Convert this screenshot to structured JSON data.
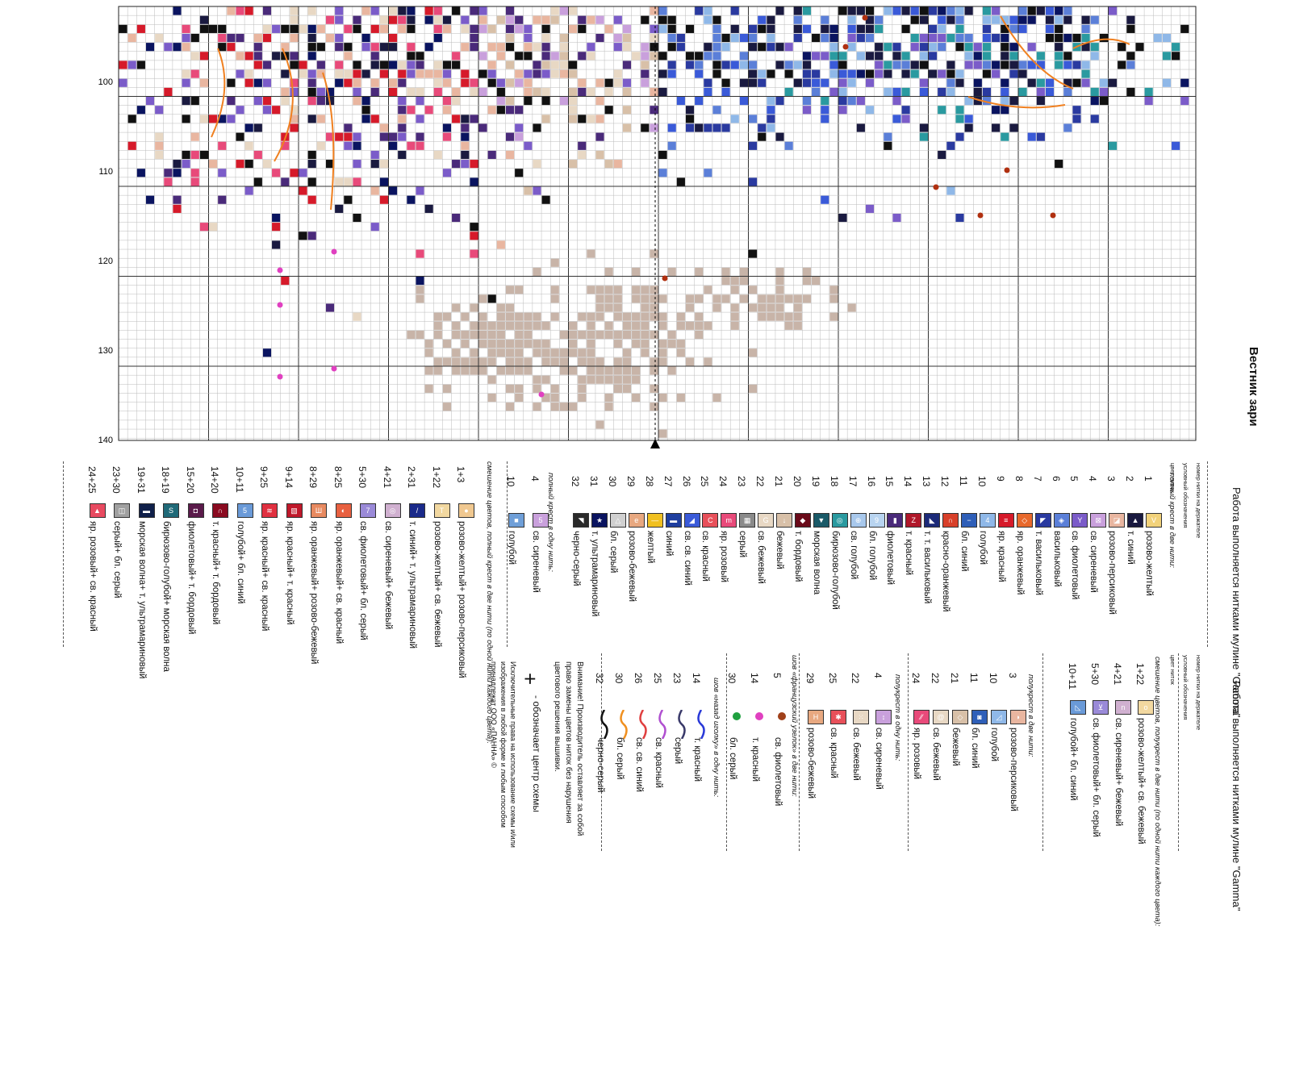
{
  "chart": {
    "row_labels": [
      "100",
      "110",
      "120",
      "130",
      "140"
    ],
    "magazine": "Вестник зари"
  },
  "right_header": {
    "title": "Работа выполняется нитками мулине \"Gamma\"",
    "col_headers": [
      "номер нитки на держателе",
      "условный обозначения",
      "цвет ниток"
    ]
  },
  "sections": {
    "full_cross_two": "полный крест в две нити:",
    "full_cross_one": "полный крест в одну нить:",
    "blend_full": "смешение цветов, полный крест в две нити (по одной нити каждого цвета):",
    "blend_half": "смешение цветов, полукрест в две нити (по одной нити каждого цвета):",
    "half_two": "полукрест в две нити:",
    "half_one": "полукрест в одну нить:",
    "french_knot": "шов «французский узелок» в две нити:",
    "backstitch": "шов «назад иголку» в одну нить:"
  },
  "legend_full_two": [
    {
      "num": "1",
      "name": "розово-желтый",
      "color": "#f2d27a",
      "mark": "V"
    },
    {
      "num": "2",
      "name": "т. синий",
      "color": "#1a1a40",
      "mark": "▲"
    },
    {
      "num": "3",
      "name": "розово-персиковый",
      "color": "#e9b6a0",
      "mark": "◪"
    },
    {
      "num": "4",
      "name": "св. сиреневый",
      "color": "#c9a0dc",
      "mark": "⊠"
    },
    {
      "num": "5",
      "name": "св. фиолетовый",
      "color": "#7b5cc9",
      "mark": "Y"
    },
    {
      "num": "6",
      "name": "васильковый",
      "color": "#5b7fd8",
      "mark": "◈"
    },
    {
      "num": "7",
      "name": "т. васильковый",
      "color": "#2a3aa0",
      "mark": "◤"
    },
    {
      "num": "8",
      "name": "яр. оранжевый",
      "color": "#e8692c",
      "mark": "◇"
    },
    {
      "num": "9",
      "name": "яр. красный",
      "color": "#d61a2a",
      "mark": "≡"
    },
    {
      "num": "10",
      "name": "голубой",
      "color": "#8fb8e8",
      "mark": "4"
    },
    {
      "num": "11",
      "name": "бл. синий",
      "color": "#2f5fb8",
      "mark": "−"
    },
    {
      "num": "12",
      "name": "красно-оранжевый",
      "color": "#d8402a",
      "mark": "∩"
    },
    {
      "num": "13",
      "name": "т. т. васильковый",
      "color": "#1c2a78",
      "mark": "◣"
    },
    {
      "num": "14",
      "name": "т. красный",
      "color": "#b0182a",
      "mark": "Z"
    },
    {
      "num": "15",
      "name": "фиолетовый",
      "color": "#4a2a7a",
      "mark": "▮"
    },
    {
      "num": "16",
      "name": "бл. голубой",
      "color": "#b8d4f0",
      "mark": "9"
    },
    {
      "num": "17",
      "name": "св. голубой",
      "color": "#a8c8ec",
      "mark": "⊕"
    },
    {
      "num": "18",
      "name": "бирюзово-голубой",
      "color": "#2a9aa0",
      "mark": "◎"
    },
    {
      "num": "19",
      "name": "морская волна",
      "color": "#1a5a68",
      "mark": "▼"
    },
    {
      "num": "20",
      "name": "т. бордовый",
      "color": "#6a0a1a",
      "mark": "◆"
    },
    {
      "num": "21",
      "name": "бежевый",
      "color": "#d8c0a8",
      "mark": "↓"
    },
    {
      "num": "22",
      "name": "св. бежевый",
      "color": "#e8d8c4",
      "mark": "G"
    },
    {
      "num": "23",
      "name": "серый",
      "color": "#8a8a8a",
      "mark": "▦"
    },
    {
      "num": "24",
      "name": "яр. розовый",
      "color": "#e84a7a",
      "mark": "m"
    },
    {
      "num": "25",
      "name": "св. красный",
      "color": "#e8505a",
      "mark": "C"
    },
    {
      "num": "26",
      "name": "св. св. синий",
      "color": "#3a5ad8",
      "mark": "◢"
    },
    {
      "num": "27",
      "name": "синий",
      "color": "#1f3f9f",
      "mark": "▬"
    },
    {
      "num": "28",
      "name": "желтый",
      "color": "#f0c020",
      "mark": "—"
    },
    {
      "num": "29",
      "name": "розово-бежевый",
      "color": "#e8a880",
      "mark": "e"
    },
    {
      "num": "30",
      "name": "бл. серый",
      "color": "#d0d0d0",
      "mark": "△"
    },
    {
      "num": "31",
      "name": "т. ультрамариновый",
      "color": "#0a1460",
      "mark": "★"
    },
    {
      "num": "32",
      "name": "черно-серый",
      "color": "#2a2a2a",
      "mark": "◥"
    }
  ],
  "legend_full_one": [
    {
      "num": "4",
      "name": "св. сиреневый",
      "color": "#c9a0dc",
      "mark": "5"
    },
    {
      "num": "10",
      "name": "голубой",
      "color": "#6f9fd8",
      "mark": "■"
    }
  ],
  "legend_blend_full": [
    {
      "num": "1+3",
      "name": "розово-желтый+ розово-персиковый",
      "color": "#f0c890",
      "mark": "●"
    },
    {
      "num": "1+22",
      "name": "розово-желтый+ св. бежевый",
      "color": "#f2d8a0",
      "mark": "T"
    },
    {
      "num": "2+31",
      "name": "т. синий+ т. ультрамариновый",
      "color": "#1a2a8a",
      "mark": "/"
    },
    {
      "num": "4+21",
      "name": "св. сиреневый+ бежевый",
      "color": "#d0b0d0",
      "mark": "◎"
    },
    {
      "num": "5+30",
      "name": "св. фиолетовый+ бл. серый",
      "color": "#9a8ad8",
      "mark": "7"
    },
    {
      "num": "8+25",
      "name": "яр. оранжевый+ св. красный",
      "color": "#e86040",
      "mark": "◐"
    },
    {
      "num": "8+29",
      "name": "яр. оранжевый+ розово-бежевый",
      "color": "#e88a60",
      "mark": "Ш"
    },
    {
      "num": "9+14",
      "name": "яр. красный+ т. красный",
      "color": "#c0182a",
      "mark": "▧"
    },
    {
      "num": "9+25",
      "name": "яр. красный+ св. красный",
      "color": "#e03040",
      "mark": "≋"
    },
    {
      "num": "10+11",
      "name": "голубой+ бл. синий",
      "color": "#6a9ad8",
      "mark": "5"
    },
    {
      "num": "14+20",
      "name": "т. красный+ т. бордовый",
      "color": "#8a0a20",
      "mark": "∩"
    },
    {
      "num": "15+20",
      "name": "фиолетовый+ т. бордовый",
      "color": "#5a1a4a",
      "mark": "◘"
    },
    {
      "num": "18+19",
      "name": "бирюзово-голубой+ морская волна",
      "color": "#206a78",
      "mark": "S"
    },
    {
      "num": "19+31",
      "name": "морская волна+ т. ультрамариновый",
      "color": "#10204a",
      "mark": "▬"
    },
    {
      "num": "23+30",
      "name": "серый+ бл. серый",
      "color": "#a0a0a0",
      "mark": "◫"
    },
    {
      "num": "24+25",
      "name": "яр. розовый+ св. красный",
      "color": "#e84a60",
      "mark": "▲"
    }
  ],
  "legend_blend_half": [
    {
      "num": "1+22",
      "name": "розово-желтый+ св. бежевый",
      "color": "#f2d8a0",
      "mark": "o"
    },
    {
      "num": "4+21",
      "name": "св. сиреневый+ бежевый",
      "color": "#d0b0d0",
      "mark": "n"
    },
    {
      "num": "5+30",
      "name": "св. фиолетовый+ бл. серый",
      "color": "#9a8ad8",
      "mark": "⊻"
    },
    {
      "num": "10+11",
      "name": "голубой+ бл. синий",
      "color": "#6a9ad8",
      "mark": "◺"
    }
  ],
  "legend_half_two": [
    {
      "num": "3",
      "name": "розово-персиковый",
      "color": "#e9b6a0",
      "mark": "◗"
    },
    {
      "num": "10",
      "name": "голубой",
      "color": "#8fb8e8",
      "mark": "◿"
    },
    {
      "num": "11",
      "name": "бл. синий",
      "color": "#2f5fb8",
      "mark": "◙"
    },
    {
      "num": "21",
      "name": "бежевый",
      "color": "#d8c0a8",
      "mark": "◇"
    },
    {
      "num": "22",
      "name": "св. бежевый",
      "color": "#e8d8c4",
      "mark": "@"
    },
    {
      "num": "24",
      "name": "яр. розовый",
      "color": "#e84a7a",
      "mark": "⁄⁄"
    }
  ],
  "legend_half_one": [
    {
      "num": "4",
      "name": "св. сиреневый",
      "color": "#c9a0dc",
      "mark": "↕"
    },
    {
      "num": "22",
      "name": "св. бежевый",
      "color": "#e8d8c4",
      "mark": "⁙"
    },
    {
      "num": "25",
      "name": "св. красный",
      "color": "#e8505a",
      "mark": "✱"
    },
    {
      "num": "29",
      "name": "розово-бежевый",
      "color": "#e8a880",
      "mark": "H"
    }
  ],
  "legend_french_knot": [
    {
      "num": "5",
      "name": "св. фиолетовый",
      "color": "#a0401a"
    },
    {
      "num": "14",
      "name": "т. красный",
      "color": "#e040c0"
    },
    {
      "num": "30",
      "name": "бл. серый",
      "color": "#20a040"
    }
  ],
  "legend_backstitch": [
    {
      "num": "14",
      "name": "т. красный",
      "color": "#2a3ad8"
    },
    {
      "num": "23",
      "name": "серый",
      "color": "#3a3a6a"
    },
    {
      "num": "25",
      "name": "св. красный",
      "color": "#b050d0"
    },
    {
      "num": "26",
      "name": "св. св. синий",
      "color": "#e04040"
    },
    {
      "num": "30",
      "name": "бл. серый",
      "color": "#f09020"
    },
    {
      "num": "32",
      "name": "черно-серый",
      "color": "#111111"
    }
  ],
  "notes": {
    "warning": "Внимание! Производитель оставляет за собой право замены цветов ниток без нарушения цветового решения вышивки.",
    "center": "- обозначает центр схемы",
    "rights": "Исключительные права на использование схемы и/или изображения в любой форме и любым способом принадлежат ООО «ПАННА» ©"
  }
}
